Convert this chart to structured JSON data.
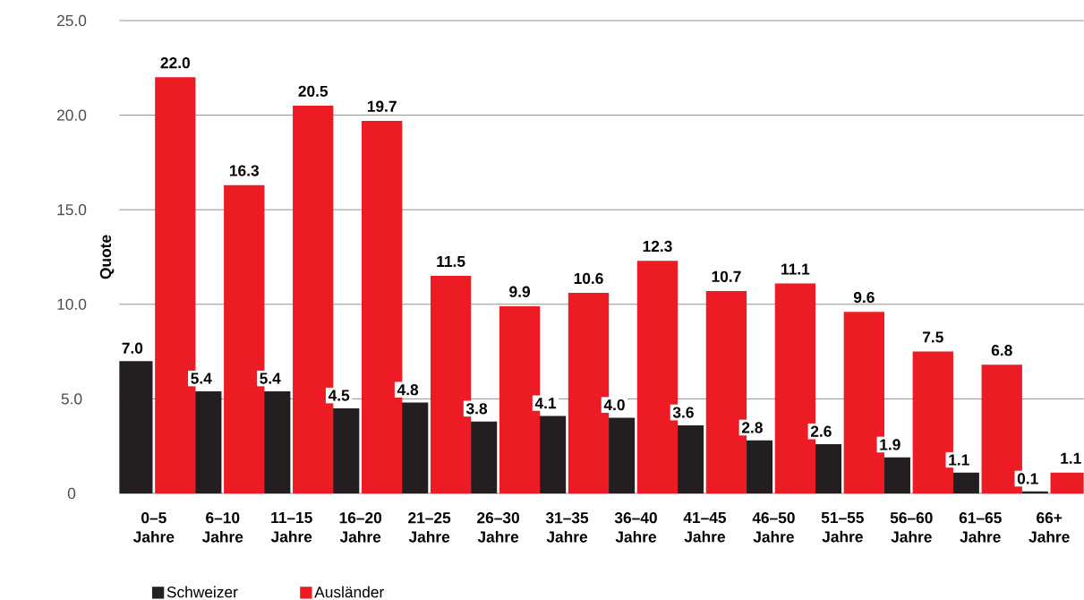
{
  "chart_data": {
    "type": "bar",
    "ylabel": "Quote",
    "categories": [
      "0–5 Jahre",
      "6–10 Jahre",
      "11–15 Jahre",
      "16–20 Jahre",
      "21–25 Jahre",
      "26–30 Jahre",
      "31–35 Jahre",
      "36–40 Jahre",
      "41–45 Jahre",
      "46–50 Jahre",
      "51–55 Jahre",
      "56–60 Jahre",
      "61–65 Jahre",
      "66+ Jahre"
    ],
    "series": [
      {
        "name": "Schweizer",
        "color": "#231f20",
        "values": [
          7.0,
          5.4,
          5.4,
          4.5,
          4.8,
          3.8,
          4.1,
          4.0,
          3.6,
          2.8,
          2.6,
          1.9,
          1.1,
          0.1
        ],
        "value_labels": [
          "7.0",
          "5.4",
          "5.4",
          "4.5",
          "4.8",
          "3.8",
          "4.1",
          "4.0",
          "3.6",
          "2.8",
          "2.6",
          "1.9",
          "1.1",
          "0.1"
        ]
      },
      {
        "name": "Ausländer",
        "color": "#ed1c24",
        "values": [
          22.0,
          16.3,
          20.5,
          19.7,
          11.5,
          9.9,
          10.6,
          12.3,
          10.7,
          11.1,
          9.6,
          7.5,
          6.8,
          1.1
        ],
        "value_labels": [
          "22.0",
          "16.3",
          "20.5",
          "19.7",
          "11.5",
          "9.9",
          "10.6",
          "12.3",
          "10.7",
          "11.1",
          "9.6",
          "7.5",
          "6.8",
          "1.1"
        ]
      }
    ],
    "ylim": [
      0,
      25
    ],
    "yticks": [
      0,
      {
        "value": 5,
        "label": "5.0"
      },
      {
        "value": 10,
        "label": "10.0"
      },
      {
        "value": 15,
        "label": "15.0"
      },
      {
        "value": 20,
        "label": "20.0"
      },
      {
        "value": 25,
        "label": "25.0"
      }
    ],
    "grid": "y",
    "legend": "bottom left"
  }
}
